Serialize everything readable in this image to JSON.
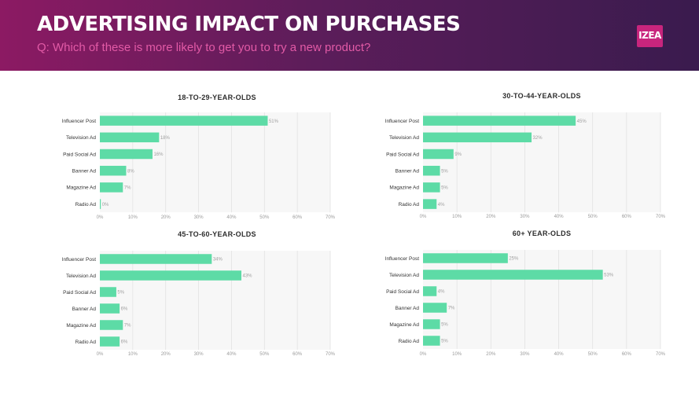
{
  "header": {
    "title": "ADVERTISING IMPACT ON PURCHASES",
    "subtitle": "Q: Which of these is more likely to get you to try a new product?",
    "logo_text": "IZEA"
  },
  "colors": {
    "bar": "#5ddba6",
    "plot_bg": "#f7f7f7",
    "grid": "#e2e2e2",
    "header_start": "#8c1a63",
    "header_end": "#3a1b4e",
    "subtitle": "#e25aa6",
    "logo_bg": "#c8257d"
  },
  "chart_data": [
    {
      "type": "bar",
      "orientation": "horizontal",
      "title": "18-TO-29-YEAR-OLDS",
      "categories": [
        "Influencer Post",
        "Television Ad",
        "Paid Social Ad",
        "Banner Ad",
        "Magazine Ad",
        "Radio Ad"
      ],
      "values": [
        51,
        18,
        16,
        8,
        7,
        0
      ],
      "value_labels": [
        "51%",
        "18%",
        "16%",
        "8%",
        "7%",
        "0%"
      ],
      "xlim": [
        0,
        70
      ],
      "ticks": [
        "0%",
        "10%",
        "20%",
        "30%",
        "40%",
        "50%",
        "60%",
        "70%"
      ],
      "grid": true
    },
    {
      "type": "bar",
      "orientation": "horizontal",
      "title": "30-TO-44-YEAR-OLDS",
      "categories": [
        "Influencer Post",
        "Television Ad",
        "Paid Social Ad",
        "Banner Ad",
        "Magazine Ad",
        "Radio Ad"
      ],
      "values": [
        45,
        32,
        9,
        5,
        5,
        4
      ],
      "value_labels": [
        "45%",
        "32%",
        "9%",
        "5%",
        "5%",
        "4%"
      ],
      "xlim": [
        0,
        70
      ],
      "ticks": [
        "0%",
        "10%",
        "20%",
        "30%",
        "40%",
        "50%",
        "60%",
        "70%"
      ],
      "grid": true
    },
    {
      "type": "bar",
      "orientation": "horizontal",
      "title": "45-TO-60-YEAR-OLDS",
      "categories": [
        "Influencer Post",
        "Television Ad",
        "Paid Social Ad",
        "Banner Ad",
        "Magazine Ad",
        "Radio Ad"
      ],
      "values": [
        34,
        43,
        5,
        6,
        7,
        6
      ],
      "value_labels": [
        "34%",
        "43%",
        "5%",
        "6%",
        "7%",
        "6%"
      ],
      "xlim": [
        0,
        70
      ],
      "ticks": [
        "0%",
        "10%",
        "20%",
        "30%",
        "40%",
        "50%",
        "60%",
        "70%"
      ],
      "grid": true
    },
    {
      "type": "bar",
      "orientation": "horizontal",
      "title": "60+ YEAR-OLDS",
      "categories": [
        "Influencer Post",
        "Television Ad",
        "Paid Social Ad",
        "Banner Ad",
        "Magazine Ad",
        "Radio Ad"
      ],
      "values": [
        25,
        53,
        4,
        7,
        5,
        5
      ],
      "value_labels": [
        "25%",
        "53%",
        "4%",
        "7%",
        "5%",
        "5%"
      ],
      "xlim": [
        0,
        70
      ],
      "ticks": [
        "0%",
        "10%",
        "20%",
        "30%",
        "40%",
        "50%",
        "60%",
        "70%"
      ],
      "grid": true
    }
  ]
}
